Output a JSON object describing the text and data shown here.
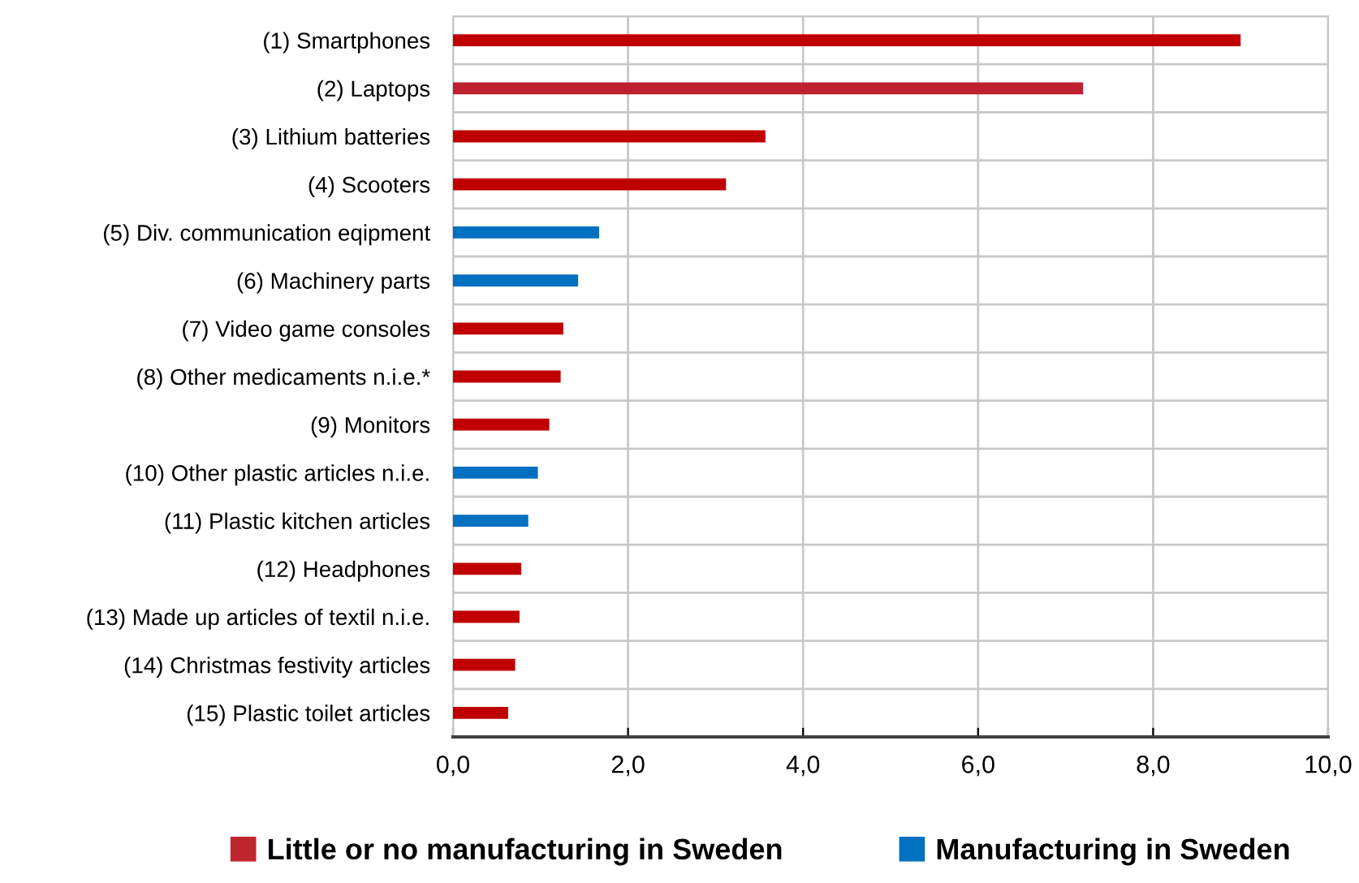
{
  "chart_data": {
    "type": "bar",
    "orientation": "horizontal",
    "categories": [
      "(1) Smartphones",
      "(2) Laptops",
      "(3) Lithium batteries",
      "(4) Scooters",
      "(5) Div. communication eqipment",
      "(6) Machinery parts",
      "(7) Video game consoles",
      "(8) Other medicaments n.i.e.*",
      "(9) Monitors",
      "(10) Other plastic articles n.i.e.",
      "(11) Plastic kitchen articles",
      "(12) Headphones",
      "(13) Made up articles of textil n.i.e.",
      "(14) Christmas festivity articles",
      "(15) Plastic toilet articles"
    ],
    "series": [
      {
        "name": "Little or no manufacturing in Sweden",
        "color": "#c0262e",
        "values": [
          9.0,
          7.2,
          3.57,
          3.12,
          null,
          null,
          1.26,
          1.23,
          1.1,
          null,
          null,
          0.78,
          0.76,
          0.71,
          0.63
        ],
        "colors": [
          "#c00000",
          "#be2030",
          "#c00000",
          "#c00000",
          null,
          null,
          "#c00000",
          "#c00000",
          "#c00000",
          null,
          null,
          "#c00000",
          "#c00000",
          "#c00000",
          "#c00000"
        ]
      },
      {
        "name": "Manufacturing in Sweden",
        "color": "#0070c0",
        "values": [
          null,
          null,
          null,
          null,
          1.67,
          1.43,
          null,
          null,
          null,
          0.97,
          0.86,
          null,
          null,
          null,
          null
        ]
      }
    ],
    "xlim": [
      0,
      10
    ],
    "xticks": [
      {
        "value": 0,
        "label": "0,0"
      },
      {
        "value": 2,
        "label": "2,0"
      },
      {
        "value": 4,
        "label": "4,0"
      },
      {
        "value": 6,
        "label": "6,0"
      },
      {
        "value": 8,
        "label": "8,0"
      },
      {
        "value": 10,
        "label": "10,0"
      }
    ],
    "grid": true,
    "legend": "bottom"
  }
}
